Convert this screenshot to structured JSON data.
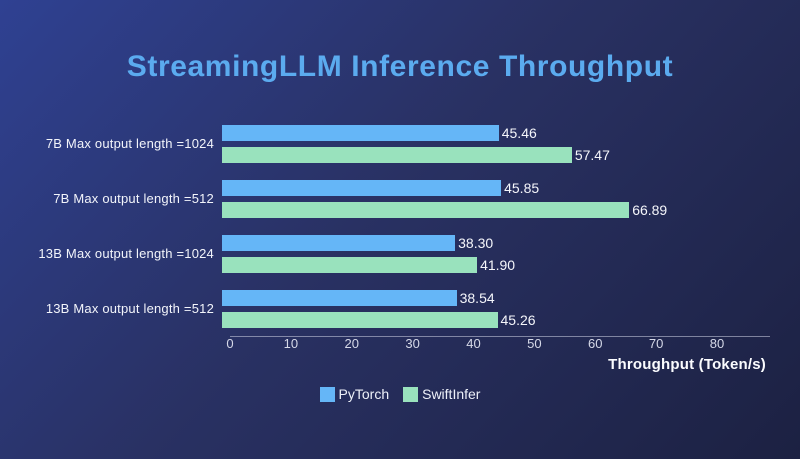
{
  "title": "StreamingLLM Inference Throughput",
  "chart_data": {
    "type": "bar",
    "orientation": "horizontal",
    "title": "StreamingLLM Inference Throughput",
    "categories": [
      "7B Max output length =1024",
      "7B Max output length =512",
      "13B Max output length =1024",
      "13B Max output length =512"
    ],
    "series": [
      {
        "name": "PyTorch",
        "color": "#65b6f7",
        "values": [
          45.46,
          45.85,
          38.3,
          38.54
        ],
        "labels": [
          "45.46",
          "45.85",
          "38.30",
          "38.54"
        ]
      },
      {
        "name": "SwiftInfer",
        "color": "#99e2bd",
        "values": [
          57.47,
          66.89,
          41.9,
          45.26
        ],
        "labels": [
          "57.47",
          "66.89",
          "41.90",
          "45.26"
        ]
      }
    ],
    "xlabel": "Throughput (Token/s)",
    "xlim": [
      0,
      80
    ],
    "xticks": [
      0,
      10,
      20,
      30,
      40,
      50,
      60,
      70,
      80
    ],
    "grid": false,
    "legend_position": "bottom"
  },
  "colors": {
    "background_top_left": "#2f4192",
    "background_bottom_right": "#1c2142",
    "title_text": "#5babef",
    "label_text": "#f3f5fb",
    "tick_text": "#d6d9e8",
    "axis_line": "rgba(205,210,228,0.55)"
  }
}
